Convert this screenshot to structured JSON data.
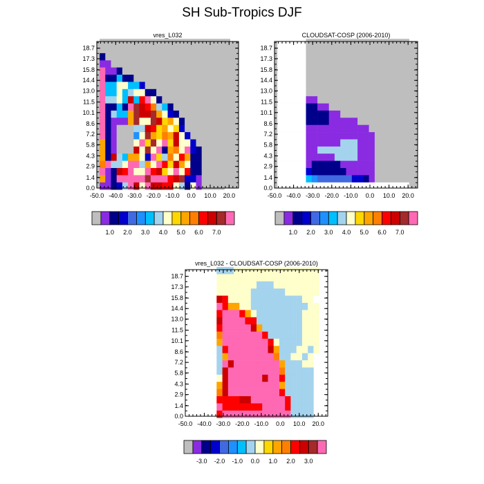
{
  "page": {
    "title": "SH Sub-Tropics DJF"
  },
  "palettes": {
    "abs": [
      "#bebebe",
      "#8a2be2",
      "#00008b",
      "#0000cd",
      "#4169e1",
      "#1e90ff",
      "#00bfff",
      "#a4d3ee",
      "#ffffcc",
      "#ffd700",
      "#ffa500",
      "#ff7f00",
      "#ff0000",
      "#cd0000",
      "#a52a2a",
      "#ff69b4"
    ],
    "diff": [
      "#bebebe",
      "#8a2be2",
      "#00008b",
      "#0000cd",
      "#4169e1",
      "#1e90ff",
      "#00bfff",
      "#a4d3ee",
      "#ffffcc",
      "#ffd700",
      "#ffa500",
      "#ff7f00",
      "#ff0000",
      "#cd0000",
      "#a52a2a",
      "#ff69b4"
    ]
  },
  "chart_data": [
    {
      "type": "heatmap",
      "title": "vres_L032",
      "x_ticks": [
        "-50.0",
        "-40.0",
        "-30.0",
        "-20.0",
        "-10.0",
        "0.0",
        "10.0",
        "20.0"
      ],
      "y_ticks": [
        "0.0",
        "1.4",
        "2.9",
        "4.3",
        "5.8",
        "7.2",
        "8.6",
        "10.1",
        "11.5",
        "13.0",
        "14.4",
        "15.8",
        "17.3",
        "18.7"
      ],
      "xlim": [
        -50,
        25
      ],
      "ylim": [
        0,
        19.6
      ],
      "background": "grey",
      "colorbar": {
        "labels": [
          "1.0",
          "2.0",
          "3.0",
          "4.0",
          "5.0",
          "6.0",
          "7.0"
        ],
        "levels": 16
      },
      "grid_description": "rows listed from top (highest altitude) to bottom; columns from x=-48 to x=22 in 3-unit steps; values are colorbar bin indices (0 = missing)",
      "grid": [
        "00000000000000000000000",
        "00000000000000000000000",
        "20000000000000000000000",
        "11000000000000000000000",
        "F1120000000000000000000",
        "F2262200000000000000000",
        "F6688663000000000000000",
        "F6686788220000000000000",
        "F7786D6CF82000000000000",
        "F2262FEDCB7620000000000",
        "F2766AEDDEA832000000000",
        "F2111AE88ED9A8200000000",
        "F2100077DC9A89300000000",
        "F2100058EA9BAD830000000",
        "A210008F9E8F9D8830000000",
        "A21000D8E8F2AB8F3200000",
        "A2D76AA83F97B8CA2200000",
        "BF778FF7A8FC9DA82200000",
        "F12DCF88FCD98F8C2200000",
        "A12FFFFFEFFFCDE33100000",
        "11237FD8FDDCC872810000"
      ]
    },
    {
      "type": "heatmap",
      "title": "CLOUDSAT-COSP (2006-2010)",
      "x_ticks": [
        "-50.0",
        "-40.0",
        "-30.0",
        "-20.0",
        "-10.0",
        "0.0",
        "10.0",
        "20.0"
      ],
      "y_ticks": [
        "0.0",
        "1.4",
        "2.9",
        "4.3",
        "5.8",
        "7.2",
        "8.6",
        "10.1",
        "11.5",
        "13.0",
        "14.4",
        "15.8",
        "17.3",
        "18.7"
      ],
      "xlim": [
        -50,
        25
      ],
      "ylim": [
        0,
        19.6
      ],
      "background": "grey",
      "colorbar": {
        "labels": [
          "1.0",
          "2.0",
          "3.0",
          "4.0",
          "5.0",
          "6.0",
          "7.0"
        ],
        "levels": 16
      },
      "grid_description": "rows top to bottom, columns from x=-48 to x=22 in 3-unit steps; W = white (no data), 0 = grey, digits/hex = colorbar bin index",
      "grid": [
        "WWWWW000000000000000000",
        "WWWWW000000000000000000",
        "WWWWW000000000000000000",
        "WWWWW000000000000000000",
        "WWWWW000000000000000000",
        "WWWWW000000000000000000",
        "WWWWW000000000000000000",
        "WWWWW000000000000000000",
        "WWWWW110000000000000000",
        "WWWWW221100000000000000",
        "WWWWW222211000000000000",
        "WWWWW222211111000000000",
        "WWWWW111111111110000000",
        "WWWWW111111111111000000",
        "WWWWW111111777111000000",
        "WWWWW117777777111000000",
        "WWWWW111117777111000000",
        "WWWWW122222111111000000",
        "WWWWW322222211111000000",
        "WWWWW654444443321000000",
        "WWWWWWWWWWWWWWWWWWWWWWW"
      ]
    },
    {
      "type": "heatmap",
      "title": "vres_L032 - CLOUDSAT-COSP (2006-2010)",
      "x_ticks": [
        "-50.0",
        "-40.0",
        "-30.0",
        "-20.0",
        "-10.0",
        "0.0",
        "10.0",
        "20.0"
      ],
      "y_ticks": [
        "0.0",
        "1.4",
        "2.9",
        "4.3",
        "5.8",
        "7.2",
        "8.6",
        "10.1",
        "11.5",
        "13.0",
        "14.4",
        "15.8",
        "17.3",
        "18.7"
      ],
      "xlim": [
        -50,
        25
      ],
      "ylim": [
        0,
        19.6
      ],
      "background": "white",
      "colorbar": {
        "labels": [
          "-3.0",
          "-2.0",
          "-1.0",
          "0.0",
          "1.0",
          "2.0",
          "3.0"
        ],
        "levels": 16
      },
      "grid_description": "rows top to bottom, columns from x=-48 to x=22 in 3-unit steps; W = white, other = colorbar bin index",
      "grid": [
        "WWWWW777888888888888888",
        "WWWWW888888888888888888",
        "WWWWW888888877788888888",
        "WWWWW888888777777888888",
        "WWWWWDC888877777777788",
        "WWWWWFCAA88777777777788",
        "WWWWWCFFFCA877777777888",
        "WWWWWDFFFFCC77777777888",
        "WWWWWCFFFFFDA7777777888",
        "WWWWWBFFFFFFFC777777888",
        "WWWWWAFFFFFFFFC87777888",
        "WWWWW7CFFFFFFFDA7778878",
        "WWWWW7AFFFFFFFFB778878",
        "WWWWW7FDFFFFFFFFA77788",
        "WWWWW7DFFFFFFFFFB77777",
        "WWWWW8DFFFFFFDFFC77777",
        "WWWWWADFFFFFFFFFA77777",
        "WWWWWBDFFFFFFFFFC77777",
        "WWWWWCCCCDDFFFFFFC7777",
        "WWWWWFCCCCCCCFFFFC7777",
        "WWWWWCFFFFFFFFFFFF7777"
      ]
    }
  ]
}
